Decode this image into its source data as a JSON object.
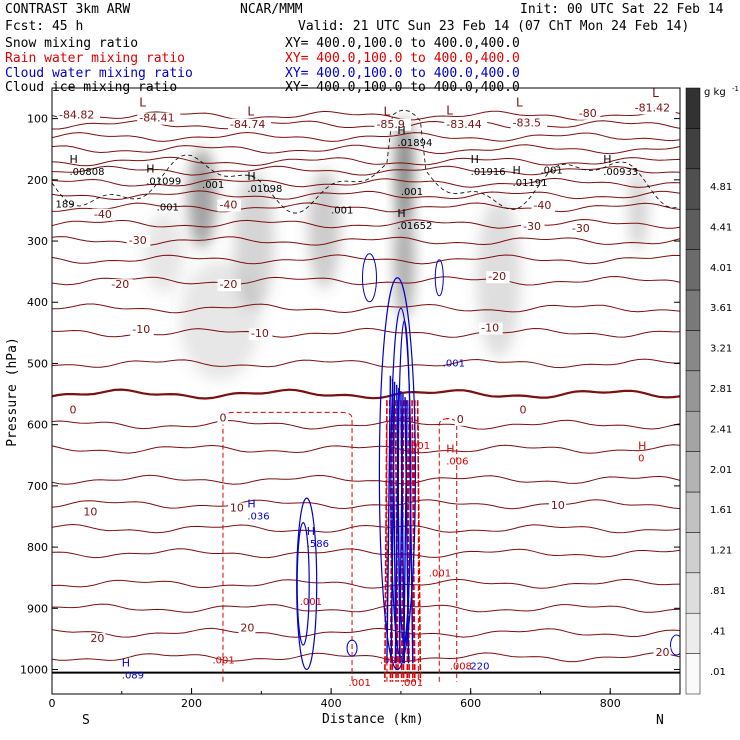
{
  "header": {
    "model": "CONTRAST  3km ARW",
    "org": "NCAR/MMM",
    "init": "Init: 00 UTC Sat 22 Feb 14",
    "fcst": "Fcst:   45 h",
    "valid": "Valid: 21 UTC Sun 23 Feb 14 (07 ChT Mon 24 Feb 14)"
  },
  "fields": [
    {
      "name": "Snow mixing ratio",
      "color": "#000000",
      "xy": "XY= 400.0,100.0 to 400.0,400.0"
    },
    {
      "name": "Rain water mixing ratio",
      "color": "#dd0000",
      "xy": "XY= 400.0,100.0 to 400.0,400.0"
    },
    {
      "name": "Cloud water mixing ratio",
      "color": "#0000cc",
      "xy": "XY= 400.0,100.0 to 400.0,400.0"
    },
    {
      "name": "Cloud ice mixing ratio",
      "color": "#000000",
      "xy": "XY= 400.0,100.0 to 400.0,400.0"
    }
  ],
  "chart_data": {
    "type": "cross-section",
    "xlabel": "Distance (km)",
    "ylabel": "Pressure (hPa)",
    "xlim": [
      0,
      900
    ],
    "ylim": [
      1040,
      50
    ],
    "x_ticks": [
      0,
      200,
      400,
      600,
      800
    ],
    "y_ticks": [
      100,
      200,
      300,
      400,
      500,
      600,
      700,
      800,
      900,
      1000
    ],
    "direction_left": "S",
    "direction_right": "N",
    "colorbar": {
      "unit": "g kg",
      "unit_exp": "-1",
      "labels": [
        ".01",
        ".41",
        ".81",
        "1.21",
        "1.61",
        "2.01",
        "2.41",
        "2.81",
        "3.21",
        "3.61",
        "4.01",
        "4.41",
        "4.81"
      ]
    },
    "temperature_contours": [
      {
        "label": "-80",
        "p": 90
      },
      {
        "label": "-40",
        "p": 225
      },
      {
        "label": "-30",
        "p": 272
      },
      {
        "label": "-20",
        "p": 330
      },
      {
        "label": "-10",
        "p": 410
      },
      {
        "label": "0",
        "p": 550
      },
      {
        "label": "10",
        "p": 690
      },
      {
        "label": "20",
        "p": 860
      }
    ],
    "temp_labels": [
      {
        "text": "-84.82",
        "x": 10,
        "p": 100
      },
      {
        "text": "-84.41",
        "x": 125,
        "p": 105
      },
      {
        "text": "-84.74",
        "x": 255,
        "p": 115
      },
      {
        "text": "-85.9",
        "x": 465,
        "p": 115
      },
      {
        "text": "-83.44",
        "x": 565,
        "p": 115
      },
      {
        "text": "-83.5",
        "x": 660,
        "p": 113
      },
      {
        "text": "-80",
        "x": 755,
        "p": 97
      },
      {
        "text": "-81.42",
        "x": 835,
        "p": 88
      },
      {
        "text": "-40",
        "x": 60,
        "p": 262
      },
      {
        "text": "-40",
        "x": 240,
        "p": 247
      },
      {
        "text": "-40",
        "x": 690,
        "p": 248
      },
      {
        "text": "-30",
        "x": 110,
        "p": 305
      },
      {
        "text": "-30",
        "x": 675,
        "p": 282
      },
      {
        "text": "-30",
        "x": 745,
        "p": 285
      },
      {
        "text": "-20",
        "x": 85,
        "p": 377
      },
      {
        "text": "-20",
        "x": 240,
        "p": 377
      },
      {
        "text": "-20",
        "x": 625,
        "p": 364
      },
      {
        "text": "-10",
        "x": 115,
        "p": 450
      },
      {
        "text": "-10",
        "x": 285,
        "p": 457
      },
      {
        "text": "-10",
        "x": 615,
        "p": 448
      },
      {
        "text": "0",
        "x": 25,
        "p": 582
      },
      {
        "text": "0",
        "x": 240,
        "p": 595
      },
      {
        "text": "0",
        "x": 670,
        "p": 582
      },
      {
        "text": "0",
        "x": 580,
        "p": 597
      },
      {
        "text": "10",
        "x": 45,
        "p": 748
      },
      {
        "text": "10",
        "x": 255,
        "p": 742
      },
      {
        "text": "10",
        "x": 715,
        "p": 738
      },
      {
        "text": "20",
        "x": 55,
        "p": 955
      },
      {
        "text": "20",
        "x": 270,
        "p": 938
      },
      {
        "text": "20",
        "x": 865,
        "p": 978
      }
    ],
    "ice_labels": [
      {
        "text": ".001",
        "x": 215,
        "p": 213
      },
      {
        "text": ".001",
        "x": 150,
        "p": 250
      },
      {
        "text": ".001",
        "x": 400,
        "p": 255
      },
      {
        "text": ".001",
        "x": 500,
        "p": 225
      },
      {
        "text": ".001",
        "x": 700,
        "p": 190
      },
      {
        "text": "189",
        "x": 5,
        "p": 245
      }
    ],
    "highs": [
      {
        "text": "H",
        "value": ".00808",
        "x": 25,
        "p": 192,
        "color": "#000000"
      },
      {
        "text": "H",
        "value": ".01099",
        "x": 135,
        "p": 208,
        "color": "#000000"
      },
      {
        "text": "H",
        "value": ".01098",
        "x": 280,
        "p": 220,
        "color": "#000000"
      },
      {
        "text": "H",
        "value": ".01894",
        "x": 495,
        "p": 145,
        "color": "#000000"
      },
      {
        "text": "H",
        "value": ".01916",
        "x": 600,
        "p": 192,
        "color": "#000000"
      },
      {
        "text": "H",
        "value": ".01191",
        "x": 660,
        "p": 210,
        "color": "#000000"
      },
      {
        "text": "H",
        "value": ".00933",
        "x": 790,
        "p": 192,
        "color": "#000000"
      },
      {
        "text": "H",
        "value": ".01652",
        "x": 495,
        "p": 280,
        "color": "#000000"
      },
      {
        "text": "H",
        "value": ".036",
        "x": 280,
        "p": 755,
        "color": "#0000cc"
      },
      {
        "text": "H",
        "value": ".586",
        "x": 365,
        "p": 800,
        "color": "#0000cc"
      },
      {
        "text": "H",
        "value": ".089",
        "x": 100,
        "p": 1015,
        "color": "#0000cc"
      },
      {
        "text": "H",
        "value": ".006",
        "x": 565,
        "p": 665,
        "color": "#dd0000"
      },
      {
        "text": "H",
        "value": "0",
        "x": 840,
        "p": 660,
        "color": "#dd0000"
      }
    ],
    "lows": [
      {
        "text": "L",
        "x": 125,
        "p": 80
      },
      {
        "text": "L",
        "x": 280,
        "p": 95
      },
      {
        "text": "L",
        "x": 475,
        "p": 95
      },
      {
        "text": "L",
        "x": 565,
        "p": 93
      },
      {
        "text": "L",
        "x": 665,
        "p": 80
      },
      {
        "text": "L",
        "x": 860,
        "p": 65
      }
    ],
    "cloud_labels": [
      {
        "text": ".001",
        "x": 560,
        "p": 505
      },
      {
        "text": ".001",
        "x": 355,
        "p": 895,
        "color": "#dd0000"
      },
      {
        "text": ".001",
        "x": 510,
        "p": 640,
        "color": "#dd0000"
      },
      {
        "text": ".001",
        "x": 540,
        "p": 848,
        "color": "#dd0000"
      },
      {
        "text": ".001",
        "x": 230,
        "p": 990,
        "color": "#dd0000"
      },
      {
        "text": ".001",
        "x": 425,
        "p": 1027,
        "color": "#dd0000"
      },
      {
        "text": ".001",
        "x": 500,
        "p": 1027,
        "color": "#dd0000"
      },
      {
        "text": ".001",
        "x": 470,
        "p": 990,
        "color": "#dd0000"
      },
      {
        "text": ".008",
        "x": 570,
        "p": 1000,
        "color": "#dd0000"
      },
      {
        "text": ".220",
        "x": 595,
        "p": 1000,
        "color": "#0000cc"
      }
    ]
  }
}
